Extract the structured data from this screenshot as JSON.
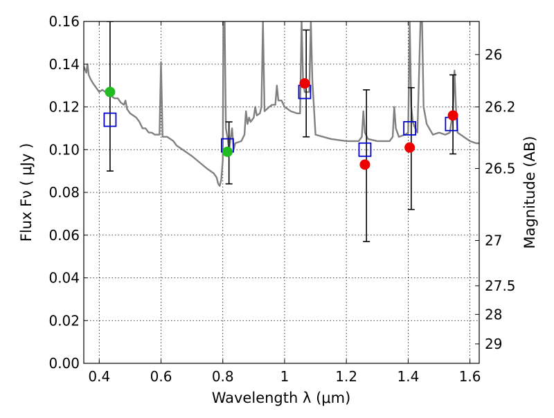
{
  "chart_data": {
    "type": "scatter",
    "xlabel": "Wavelength  λ (μm)",
    "ylabel": "Flux  Fν  ( μJy )",
    "y2label": "Magnitude (AB)",
    "xlim": [
      0.35,
      1.63
    ],
    "ylim": [
      0.0,
      0.16
    ],
    "grid": true,
    "x_ticks": [
      0.4,
      0.6,
      0.8,
      1.0,
      1.2,
      1.4,
      1.6
    ],
    "x_tick_labels": [
      "0.4",
      "0.6",
      "0.8",
      "1",
      "1.2",
      "1.4",
      "1.6"
    ],
    "y_ticks": [
      0.0,
      0.02,
      0.04,
      0.06,
      0.08,
      0.1,
      0.12,
      0.14,
      0.16
    ],
    "y_tick_labels": [
      "0.00",
      "0.02",
      "0.04",
      "0.06",
      "0.08",
      "0.10",
      "0.12",
      "0.14",
      "0.16"
    ],
    "mag_ticks": [
      {
        "flux": 0.1445,
        "label": "26"
      },
      {
        "flux": 0.12,
        "label": "26.2"
      },
      {
        "flux": 0.0912,
        "label": "26.5"
      },
      {
        "flux": 0.0575,
        "label": "27"
      },
      {
        "flux": 0.0363,
        "label": "27.5"
      },
      {
        "flux": 0.0229,
        "label": "28"
      },
      {
        "flux": 0.0091,
        "label": "29"
      }
    ],
    "series": [
      {
        "kind": "line",
        "color": "#808080",
        "points": [
          [
            0.35,
            0.139
          ],
          [
            0.358,
            0.136
          ],
          [
            0.362,
            0.14
          ],
          [
            0.366,
            0.135
          ],
          [
            0.372,
            0.133
          ],
          [
            0.38,
            0.131
          ],
          [
            0.39,
            0.129
          ],
          [
            0.4,
            0.127
          ],
          [
            0.41,
            0.128
          ],
          [
            0.42,
            0.127
          ],
          [
            0.43,
            0.126
          ],
          [
            0.44,
            0.125
          ],
          [
            0.45,
            0.124
          ],
          [
            0.46,
            0.124
          ],
          [
            0.47,
            0.122
          ],
          [
            0.48,
            0.121
          ],
          [
            0.485,
            0.123
          ],
          [
            0.49,
            0.119
          ],
          [
            0.5,
            0.117
          ],
          [
            0.51,
            0.116
          ],
          [
            0.52,
            0.115
          ],
          [
            0.53,
            0.113
          ],
          [
            0.54,
            0.11
          ],
          [
            0.55,
            0.11
          ],
          [
            0.56,
            0.108
          ],
          [
            0.57,
            0.108
          ],
          [
            0.58,
            0.107
          ],
          [
            0.595,
            0.107
          ],
          [
            0.6,
            0.141
          ],
          [
            0.605,
            0.106
          ],
          [
            0.62,
            0.106
          ],
          [
            0.63,
            0.105
          ],
          [
            0.64,
            0.104
          ],
          [
            0.65,
            0.102
          ],
          [
            0.66,
            0.101
          ],
          [
            0.7,
            0.097
          ],
          [
            0.75,
            0.091
          ],
          [
            0.77,
            0.089
          ],
          [
            0.78,
            0.087
          ],
          [
            0.785,
            0.084
          ],
          [
            0.79,
            0.083
          ],
          [
            0.795,
            0.086
          ],
          [
            0.8,
            0.095
          ],
          [
            0.802,
            0.16
          ],
          [
            0.806,
            0.16
          ],
          [
            0.81,
            0.11
          ],
          [
            0.815,
            0.106
          ],
          [
            0.82,
            0.1
          ],
          [
            0.83,
            0.11
          ],
          [
            0.835,
            0.1
          ],
          [
            0.84,
            0.103
          ],
          [
            0.86,
            0.104
          ],
          [
            0.87,
            0.107
          ],
          [
            0.875,
            0.118
          ],
          [
            0.88,
            0.112
          ],
          [
            0.885,
            0.115
          ],
          [
            0.89,
            0.113
          ],
          [
            0.9,
            0.115
          ],
          [
            0.905,
            0.12
          ],
          [
            0.91,
            0.116
          ],
          [
            0.92,
            0.117
          ],
          [
            0.925,
            0.12
          ],
          [
            0.93,
            0.16
          ],
          [
            0.935,
            0.118
          ],
          [
            0.95,
            0.12
          ],
          [
            0.96,
            0.121
          ],
          [
            0.97,
            0.121
          ],
          [
            0.975,
            0.13
          ],
          [
            0.98,
            0.123
          ],
          [
            0.99,
            0.123
          ],
          [
            1.0,
            0.12
          ],
          [
            1.02,
            0.118
          ],
          [
            1.04,
            0.117
          ],
          [
            1.05,
            0.117
          ],
          [
            1.055,
            0.16
          ],
          [
            1.06,
            0.132
          ],
          [
            1.065,
            0.127
          ],
          [
            1.07,
            0.127
          ],
          [
            1.08,
            0.127
          ],
          [
            1.085,
            0.16
          ],
          [
            1.09,
            0.132
          ],
          [
            1.095,
            0.12
          ],
          [
            1.1,
            0.107
          ],
          [
            1.15,
            0.105
          ],
          [
            1.2,
            0.104
          ],
          [
            1.24,
            0.104
          ],
          [
            1.25,
            0.106
          ],
          [
            1.255,
            0.118
          ],
          [
            1.26,
            0.108
          ],
          [
            1.27,
            0.105
          ],
          [
            1.3,
            0.104
          ],
          [
            1.34,
            0.104
          ],
          [
            1.35,
            0.106
          ],
          [
            1.355,
            0.12
          ],
          [
            1.36,
            0.11
          ],
          [
            1.37,
            0.106
          ],
          [
            1.39,
            0.107
          ],
          [
            1.4,
            0.108
          ],
          [
            1.405,
            0.16
          ],
          [
            1.41,
            0.12
          ],
          [
            1.415,
            0.113
          ],
          [
            1.42,
            0.111
          ],
          [
            1.43,
            0.108
          ],
          [
            1.44,
            0.16
          ],
          [
            1.445,
            0.16
          ],
          [
            1.45,
            0.12
          ],
          [
            1.46,
            0.112
          ],
          [
            1.48,
            0.107
          ],
          [
            1.5,
            0.108
          ],
          [
            1.52,
            0.107
          ],
          [
            1.535,
            0.108
          ],
          [
            1.545,
            0.118
          ],
          [
            1.55,
            0.137
          ],
          [
            1.555,
            0.119
          ],
          [
            1.56,
            0.108
          ],
          [
            1.57,
            0.107
          ],
          [
            1.58,
            0.106
          ],
          [
            1.6,
            0.104
          ],
          [
            1.62,
            0.103
          ],
          [
            1.63,
            0.103
          ]
        ]
      },
      {
        "kind": "errorbar",
        "color": "#000000",
        "points": [
          {
            "x": 0.435,
            "y": 0.125,
            "low": 0.09,
            "high": 0.16
          },
          {
            "x": 0.82,
            "y": 0.099,
            "low": 0.084,
            "high": 0.113
          },
          {
            "x": 1.07,
            "y": 0.131,
            "low": 0.106,
            "high": 0.156
          },
          {
            "x": 1.265,
            "y": 0.093,
            "low": 0.057,
            "high": 0.128
          },
          {
            "x": 1.41,
            "y": 0.101,
            "low": 0.072,
            "high": 0.129
          },
          {
            "x": 1.545,
            "y": 0.116,
            "low": 0.098,
            "high": 0.135
          }
        ]
      },
      {
        "kind": "open-square",
        "color": "#0000cc",
        "points": [
          [
            0.435,
            0.114
          ],
          [
            0.815,
            0.102
          ],
          [
            1.065,
            0.127
          ],
          [
            1.26,
            0.1
          ],
          [
            1.405,
            0.11
          ],
          [
            1.54,
            0.112
          ]
        ]
      },
      {
        "kind": "circle",
        "color": "#22bb22",
        "points": [
          [
            0.435,
            0.127
          ],
          [
            0.815,
            0.099
          ]
        ]
      },
      {
        "kind": "circle",
        "color": "#ee0000",
        "points": [
          [
            1.065,
            0.131
          ],
          [
            1.26,
            0.093
          ],
          [
            1.405,
            0.101
          ],
          [
            1.545,
            0.116
          ]
        ]
      }
    ]
  }
}
